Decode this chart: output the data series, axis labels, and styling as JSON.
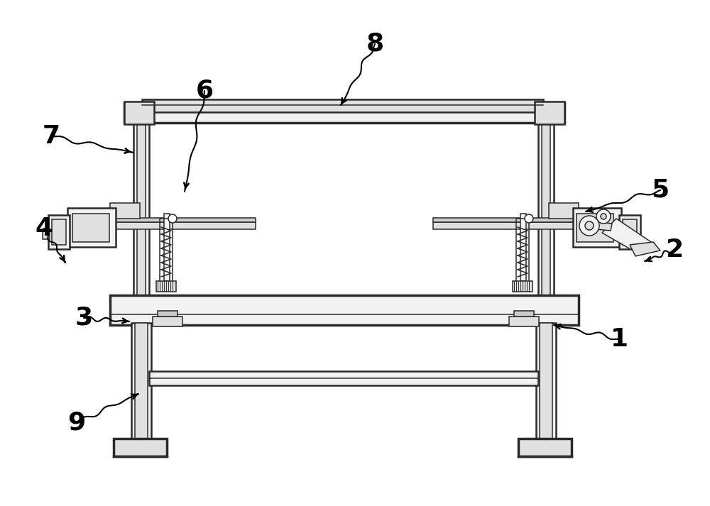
{
  "bg_color": "#ffffff",
  "line_color": "#2a2a2a",
  "fill_light": "#f2f2f2",
  "fill_mid": "#e0e0e0",
  "fill_dark": "#cccccc",
  "lw_main": 1.8,
  "lw_thick": 2.5,
  "lw_thin": 1.1,
  "figsize": [
    10.0,
    7.13
  ],
  "dpi": 100
}
